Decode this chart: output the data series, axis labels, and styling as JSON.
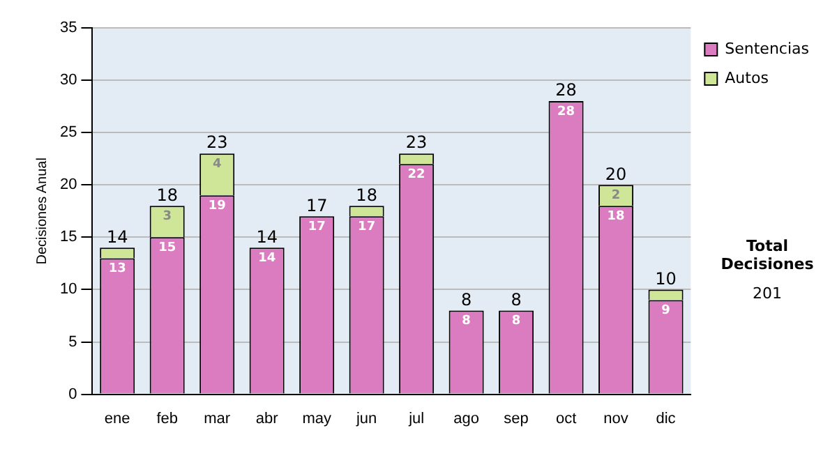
{
  "chart_data": {
    "type": "bar",
    "stacked": true,
    "ylabel": "Decisiones Anual",
    "categories": [
      "ene",
      "feb",
      "mar",
      "abr",
      "may",
      "jun",
      "jul",
      "ago",
      "sep",
      "oct",
      "nov",
      "dic"
    ],
    "series": [
      {
        "name": "Sentencias",
        "color": "#dc7cc0",
        "values": [
          13,
          15,
          19,
          14,
          17,
          17,
          22,
          8,
          8,
          28,
          18,
          9
        ],
        "value_labels": [
          "13",
          "15",
          "19",
          "14",
          "17",
          "17",
          "22",
          "8",
          "8",
          "28",
          "18",
          "9"
        ]
      },
      {
        "name": "Autos",
        "color": "#cfe597",
        "values": [
          1,
          3,
          4,
          0,
          0,
          1,
          1,
          0,
          0,
          0,
          2,
          1
        ],
        "value_labels": [
          null,
          "3",
          "4",
          null,
          null,
          null,
          null,
          null,
          null,
          null,
          "2",
          null
        ]
      }
    ],
    "totals": [
      "14",
      "18",
      "23",
      "14",
      "17",
      "18",
      "23",
      "8",
      "8",
      "28",
      "20",
      "10"
    ],
    "ylim": [
      0,
      35
    ],
    "yticks": [
      0,
      5,
      10,
      15,
      20,
      25,
      30,
      35
    ],
    "grid": "y",
    "legend": "right",
    "annotations": [
      "Total Decisiones",
      "201"
    ]
  }
}
